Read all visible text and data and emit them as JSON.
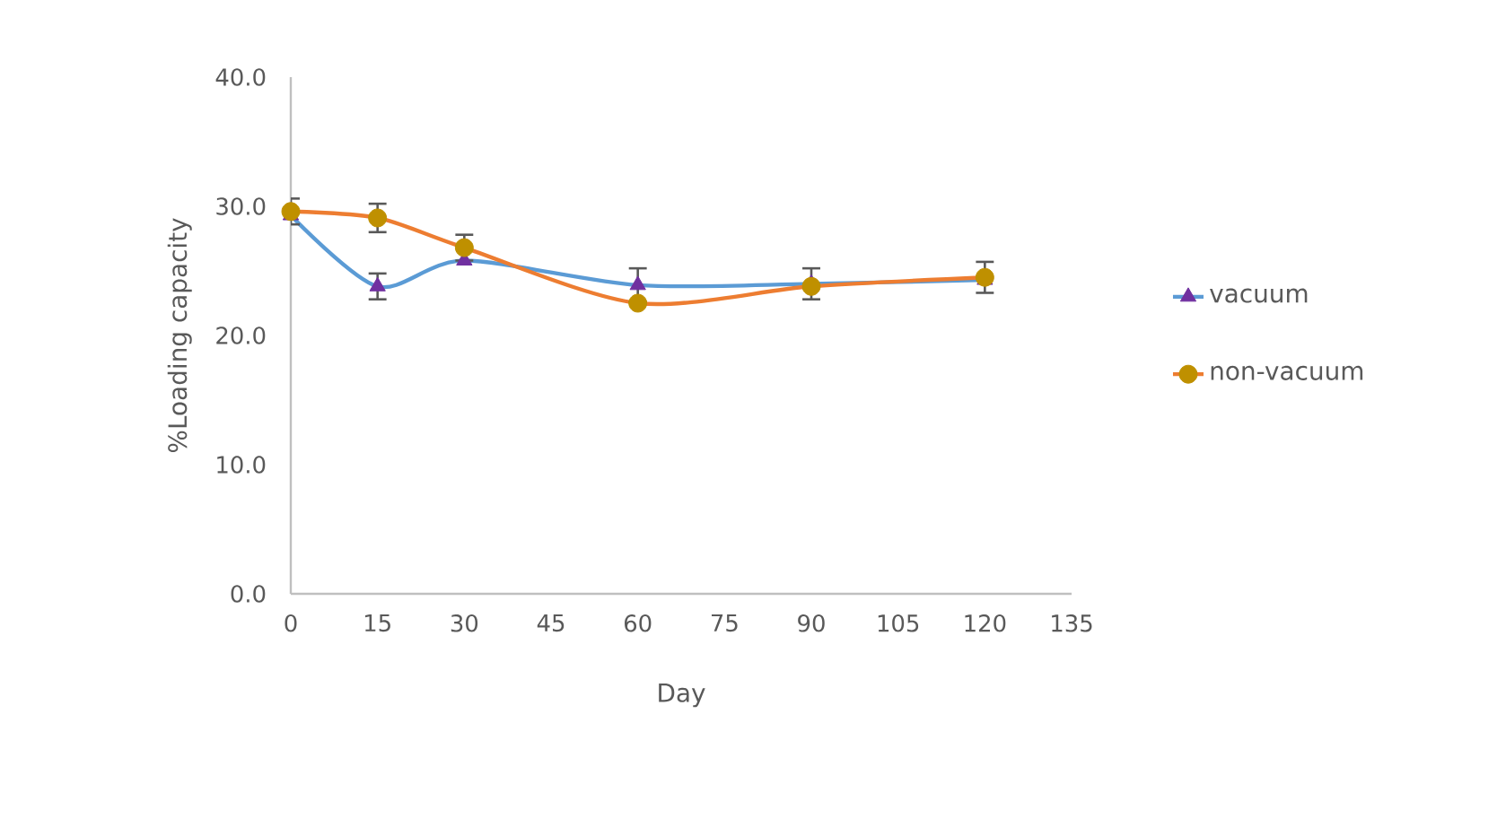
{
  "chart_data": {
    "type": "line",
    "xlabel": "Day",
    "ylabel": "%Loading capacity",
    "x": [
      0,
      15,
      30,
      60,
      90,
      120
    ],
    "xlim": [
      0,
      135
    ],
    "xticks": [
      0,
      15,
      30,
      45,
      60,
      75,
      90,
      105,
      120,
      135
    ],
    "ylim": [
      0,
      40
    ],
    "yticks": [
      {
        "value": 0,
        "label": "0.0"
      },
      {
        "value": 10,
        "label": "10.0"
      },
      {
        "value": 20,
        "label": "20.0"
      },
      {
        "value": 30,
        "label": "30.0"
      },
      {
        "value": 40,
        "label": "40.0"
      }
    ],
    "grid": false,
    "legend": "right",
    "series": [
      {
        "name": "vacuum",
        "color": "#5b9bd5",
        "marker": "triangle",
        "colors": [
          "#7030a0",
          "#7030a0",
          "#7030a0",
          "#7030a0",
          "#7030a0",
          "#7030a0"
        ],
        "values": [
          29.3,
          23.8,
          25.8,
          23.9,
          24.0,
          24.3
        ],
        "errors": [
          null,
          1.0,
          null,
          1.3,
          1.2,
          null
        ]
      },
      {
        "name": "non-vacuum",
        "color": "#ed7d31",
        "marker": "circle",
        "colors": [
          "#bf9000",
          "#bf9000",
          "#bf9000",
          "#bf9000",
          "#bf9000",
          "#bf9000"
        ],
        "values": [
          29.6,
          29.1,
          26.8,
          22.5,
          23.8,
          24.5
        ],
        "errors": [
          1.0,
          1.1,
          1.0,
          null,
          null,
          1.2
        ]
      }
    ]
  }
}
